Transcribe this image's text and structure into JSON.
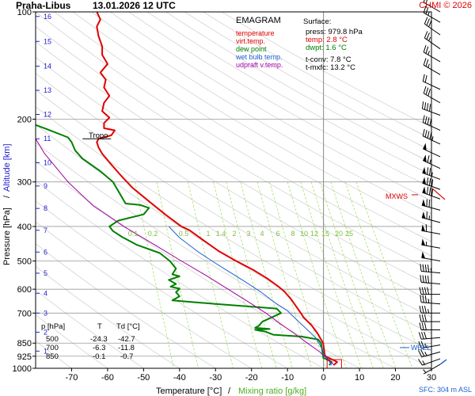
{
  "header": {
    "station": "Praha-Libus",
    "datetime": "13.01.2026 12 UTC",
    "credit": "CHMI © 2026"
  },
  "chart_data": {
    "type": "line",
    "chart_kind": "EMAGRAM",
    "xlabel": "Temperature [°C]",
    "xlabel_separator": "/",
    "xlabel2": "Mixing ratio [g/kg]",
    "ylabel": "Pressure [hPa]",
    "ylabel_separator": "/",
    "ylabel2": "Altitude [km]",
    "xlim": [
      -80,
      30
    ],
    "xticks": [
      -70,
      -60,
      -50,
      -40,
      -30,
      -20,
      -10,
      0,
      10,
      20,
      30
    ],
    "ylim": [
      1000,
      100
    ],
    "yscale": "log",
    "pressure_ticks": [
      {
        "p": 100,
        "label": "100"
      },
      {
        "p": 200,
        "label": "200"
      },
      {
        "p": 300,
        "label": "300"
      },
      {
        "p": 400,
        "label": "400"
      },
      {
        "p": 500,
        "label": "500"
      },
      {
        "p": 600,
        "label": "600"
      },
      {
        "p": 700,
        "label": "700"
      },
      {
        "p": 850,
        "label": "850"
      },
      {
        "p": 925,
        "label": "925"
      },
      {
        "p": 1000,
        "label": "1000"
      }
    ],
    "altitude_ticks": [
      {
        "p": 895,
        "label": "1"
      },
      {
        "p": 792,
        "label": "2"
      },
      {
        "p": 700,
        "label": "3"
      },
      {
        "p": 616,
        "label": "4"
      },
      {
        "p": 541,
        "label": "5"
      },
      {
        "p": 472,
        "label": "6"
      },
      {
        "p": 410,
        "label": "7"
      },
      {
        "p": 356,
        "label": "8"
      },
      {
        "p": 308,
        "label": "9"
      },
      {
        "p": 265,
        "label": "10"
      },
      {
        "p": 227,
        "label": "11"
      },
      {
        "p": 194,
        "label": "12"
      },
      {
        "p": 166,
        "label": "13"
      },
      {
        "p": 142,
        "label": "14"
      },
      {
        "p": 121,
        "label": "15"
      },
      {
        "p": 103,
        "label": "16"
      }
    ],
    "mixing_ratio_labels": [
      "0.1",
      "0.2",
      "0.5",
      "1",
      "1.4",
      "2",
      "3",
      "4",
      "6",
      "8",
      "10",
      "12",
      "15",
      "20",
      "25"
    ],
    "legend": {
      "title": "EMAGRAM",
      "items": [
        {
          "label": "temperature",
          "color": "#e00000"
        },
        {
          "label": "virt.temp.",
          "color": "#e00000"
        },
        {
          "label": "dew point",
          "color": "#008000"
        },
        {
          "label": "wet bulb temp.",
          "color": "#2060d0"
        },
        {
          "label": "udpraft v.temp.",
          "color": "#a000a0"
        }
      ]
    },
    "surface": {
      "title": "Surface:",
      "press": "press: 979.8 hPa",
      "temp": "temp: 2.8 °C",
      "dwpt": "dwpt: 1.6 °C",
      "tconv": "t-conv: 7.8 °C",
      "tmxfc": "t-mxfc: 13.2 °C"
    },
    "table": {
      "headers": [
        "p [hPa]",
        "T",
        "Td [°C]"
      ],
      "rows": [
        [
          "500",
          "-24.3",
          "-42.7"
        ],
        [
          "700",
          "-6.3",
          "-11.8"
        ],
        [
          "850",
          "-0.1",
          "-0.7"
        ]
      ]
    },
    "annotations": {
      "tropo": "Tropo",
      "tropo_p": 227,
      "tropo_t": -63,
      "mxws": "MXWS",
      "mxws_p": 326,
      "wbzl": "WBZL",
      "wbzl_p": 875,
      "sfc": "SFC: 304 m ASL"
    },
    "series": [
      {
        "name": "temperature",
        "color": "#e00000",
        "points": [
          [
            2.8,
            980
          ],
          [
            3.8,
            960
          ],
          [
            1.5,
            935
          ],
          [
            0.4,
            925
          ],
          [
            -0.1,
            850
          ],
          [
            -1,
            820
          ],
          [
            -1.6,
            800
          ],
          [
            -3.2,
            760
          ],
          [
            -5.5,
            720
          ],
          [
            -6.3,
            700
          ],
          [
            -9,
            640
          ],
          [
            -10.8,
            610
          ],
          [
            -12.5,
            590
          ],
          [
            -15.6,
            560
          ],
          [
            -19.5,
            530
          ],
          [
            -24.3,
            500
          ],
          [
            -29,
            470
          ],
          [
            -33,
            440
          ],
          [
            -37.2,
            410
          ],
          [
            -39.5,
            400
          ],
          [
            -44,
            370
          ],
          [
            -48.5,
            340
          ],
          [
            -53,
            312
          ],
          [
            -56,
            290
          ],
          [
            -59,
            268
          ],
          [
            -61.5,
            250
          ],
          [
            -62.5,
            240
          ],
          [
            -63,
            232
          ],
          [
            -62.5,
            227
          ],
          [
            -59,
            222
          ],
          [
            -58,
            215
          ],
          [
            -61,
            212
          ],
          [
            -61,
            205
          ],
          [
            -59.5,
            198
          ],
          [
            -61.5,
            190
          ],
          [
            -61,
            180
          ],
          [
            -59.5,
            172
          ],
          [
            -61,
            163
          ],
          [
            -60.5,
            155
          ],
          [
            -62,
            148
          ],
          [
            -60,
            140
          ],
          [
            -61.5,
            132
          ],
          [
            -61.5,
            125
          ],
          [
            -62.5,
            117
          ],
          [
            -63,
            110
          ],
          [
            -62,
            105
          ],
          [
            -63,
            100
          ]
        ]
      },
      {
        "name": "dew point",
        "color": "#008000",
        "points": [
          [
            1.6,
            980
          ],
          [
            2.3,
            960
          ],
          [
            0,
            935
          ],
          [
            -0.7,
            850
          ],
          [
            -1.5,
            830
          ],
          [
            -6,
            815
          ],
          [
            -14,
            805
          ],
          [
            -16,
            790
          ],
          [
            -19,
            780
          ],
          [
            -15,
            776
          ],
          [
            -19,
            770
          ],
          [
            -18,
            760
          ],
          [
            -17,
            740
          ],
          [
            -11.8,
            700
          ],
          [
            -13,
            680
          ],
          [
            -30,
            660
          ],
          [
            -42,
            645
          ],
          [
            -40,
            628
          ],
          [
            -41,
            612
          ],
          [
            -40,
            598
          ],
          [
            -42.5,
            590
          ],
          [
            -41,
            580
          ],
          [
            -43,
            565
          ],
          [
            -40,
            552
          ],
          [
            -42,
            545
          ],
          [
            -41,
            525
          ],
          [
            -42.7,
            500
          ],
          [
            -45.5,
            475
          ],
          [
            -52,
            450
          ],
          [
            -56,
            428
          ],
          [
            -58.5,
            412
          ],
          [
            -59.5,
            400
          ],
          [
            -57,
            385
          ],
          [
            -50,
            370
          ],
          [
            -48.5,
            355
          ],
          [
            -51,
            348
          ],
          [
            -55,
            345
          ],
          [
            -56.5,
            325
          ],
          [
            -58.5,
            300
          ],
          [
            -62,
            280
          ],
          [
            -67,
            258
          ],
          [
            -69,
            245
          ],
          [
            -70,
            232
          ],
          [
            -71,
            225
          ],
          [
            -77,
            213
          ],
          [
            -81,
            206
          ]
        ]
      },
      {
        "name": "wet bulb temp.",
        "color": "#2060d0",
        "points": [
          [
            2.2,
            980
          ],
          [
            1.2,
            940
          ],
          [
            0,
            900
          ],
          [
            -1,
            860
          ],
          [
            -2.2,
            820
          ],
          [
            -4.5,
            780
          ],
          [
            -7.5,
            730
          ],
          [
            -10,
            690
          ],
          [
            -13,
            660
          ],
          [
            -17.5,
            610
          ],
          [
            -22,
            570
          ],
          [
            -27,
            530
          ],
          [
            -31,
            500
          ],
          [
            -35,
            470
          ],
          [
            -40,
            430
          ],
          [
            -43,
            400
          ]
        ]
      },
      {
        "name": "udpraft v.temp.",
        "color": "#a000a0",
        "points": [
          [
            3,
            980
          ],
          [
            -1,
            900
          ],
          [
            -4.5,
            850
          ],
          [
            -8,
            800
          ],
          [
            -12,
            750
          ],
          [
            -16,
            700
          ],
          [
            -21,
            650
          ],
          [
            -26.5,
            600
          ],
          [
            -32.5,
            550
          ],
          [
            -39.5,
            500
          ],
          [
            -47,
            450
          ],
          [
            -55.5,
            400
          ],
          [
            -64,
            350
          ],
          [
            -71,
            300
          ],
          [
            -77.5,
            250
          ],
          [
            -82,
            210
          ]
        ]
      }
    ],
    "wind_barbs": [
      {
        "p": 975,
        "dir": 240,
        "spd": 5
      },
      {
        "p": 940,
        "dir": 250,
        "spd": 15
      },
      {
        "p": 900,
        "dir": 255,
        "spd": 25
      },
      {
        "p": 860,
        "dir": 260,
        "spd": 25
      },
      {
        "p": 820,
        "dir": 265,
        "spd": 30
      },
      {
        "p": 780,
        "dir": 270,
        "spd": 30
      },
      {
        "p": 740,
        "dir": 270,
        "spd": 30
      },
      {
        "p": 700,
        "dir": 270,
        "spd": 35
      },
      {
        "p": 660,
        "dir": 275,
        "spd": 35
      },
      {
        "p": 620,
        "dir": 270,
        "spd": 40
      },
      {
        "p": 580,
        "dir": 275,
        "spd": 40
      },
      {
        "p": 540,
        "dir": 275,
        "spd": 45
      },
      {
        "p": 500,
        "dir": 280,
        "spd": 50
      },
      {
        "p": 460,
        "dir": 280,
        "spd": 55
      },
      {
        "p": 420,
        "dir": 280,
        "spd": 60
      },
      {
        "p": 390,
        "dir": 285,
        "spd": 65
      },
      {
        "p": 360,
        "dir": 285,
        "spd": 70
      },
      {
        "p": 335,
        "dir": 290,
        "spd": 80
      },
      {
        "p": 315,
        "dir": 290,
        "spd": 80
      },
      {
        "p": 295,
        "dir": 290,
        "spd": 75
      },
      {
        "p": 275,
        "dir": 295,
        "spd": 65
      },
      {
        "p": 255,
        "dir": 295,
        "spd": 50
      },
      {
        "p": 235,
        "dir": 295,
        "spd": 45
      },
      {
        "p": 215,
        "dir": 295,
        "spd": 40
      },
      {
        "p": 195,
        "dir": 290,
        "spd": 40
      },
      {
        "p": 180,
        "dir": 300,
        "spd": 30
      },
      {
        "p": 165,
        "dir": 295,
        "spd": 20
      },
      {
        "p": 150,
        "dir": 300,
        "spd": 25
      },
      {
        "p": 138,
        "dir": 300,
        "spd": 25
      },
      {
        "p": 127,
        "dir": 305,
        "spd": 25
      },
      {
        "p": 116,
        "dir": 305,
        "spd": 30
      },
      {
        "p": 107,
        "dir": 300,
        "spd": 25
      },
      {
        "p": 100,
        "dir": 300,
        "spd": 20
      }
    ],
    "grid": true,
    "colors": {
      "isobar": "#9a9a9a",
      "dry_adiabat": "#c8c8c8",
      "mixing_ratio": "#a8e070",
      "mixing_label": "#7cc040",
      "zero_line": "#888888",
      "axis": "#000000",
      "altitude": "#2020d0",
      "title": "#000000",
      "credit": "#e00000"
    }
  }
}
